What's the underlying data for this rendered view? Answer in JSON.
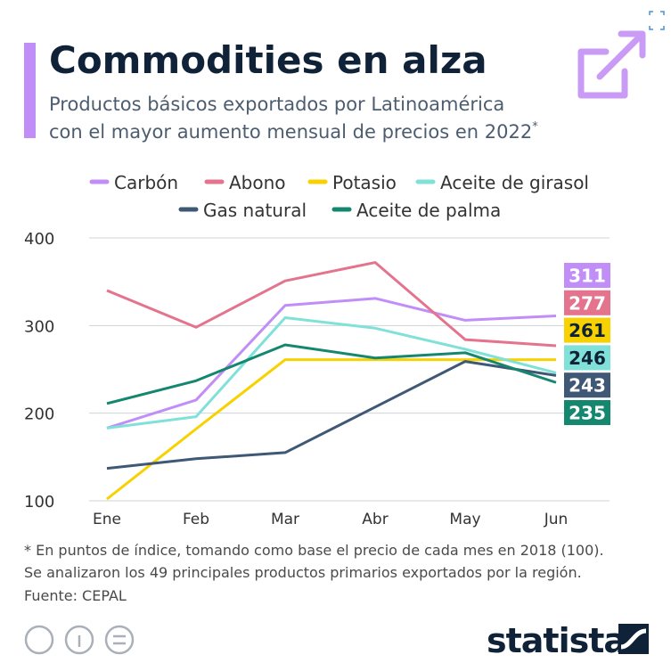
{
  "chart_data": {
    "type": "line",
    "title": "Commodities en alza",
    "subtitle": [
      "Productos básicos exportados por Latinoamérica",
      "con el mayor aumento mensual de precios en 2022"
    ],
    "subtitle_mark": "*",
    "categories": [
      "Ene",
      "Feb",
      "Mar",
      "Abr",
      "May",
      "Jun"
    ],
    "series": [
      {
        "name": "Carbón",
        "color": "#c18ef7",
        "values": [
          183,
          215,
          323,
          331,
          306,
          311
        ]
      },
      {
        "name": "Abono",
        "color": "#e4738d",
        "values": [
          340,
          298,
          351,
          372,
          284,
          277
        ]
      },
      {
        "name": "Potasio",
        "color": "#f7d200",
        "values": [
          102,
          182,
          261,
          261,
          261,
          261
        ]
      },
      {
        "name": "Aceite de girasol",
        "color": "#80e1d9",
        "values": [
          183,
          196,
          309,
          297,
          273,
          246
        ]
      },
      {
        "name": "Gas natural",
        "color": "#3e5876",
        "values": [
          137,
          148,
          155,
          207,
          259,
          243
        ]
      },
      {
        "name": "Aceite de palma",
        "color": "#16876f",
        "values": [
          211,
          237,
          278,
          263,
          269,
          235
        ]
      }
    ],
    "ylim": [
      100,
      400
    ],
    "yticks": [
      100,
      200,
      300,
      400
    ],
    "grid": true,
    "notes": [
      "* En puntos de índice, tomando como base el precio de cada mes en 2018 (100).",
      "Se analizaron los 49 principales productos primarios exportados por la región."
    ],
    "source": "Fuente: CEPAL",
    "brand": "statista"
  }
}
